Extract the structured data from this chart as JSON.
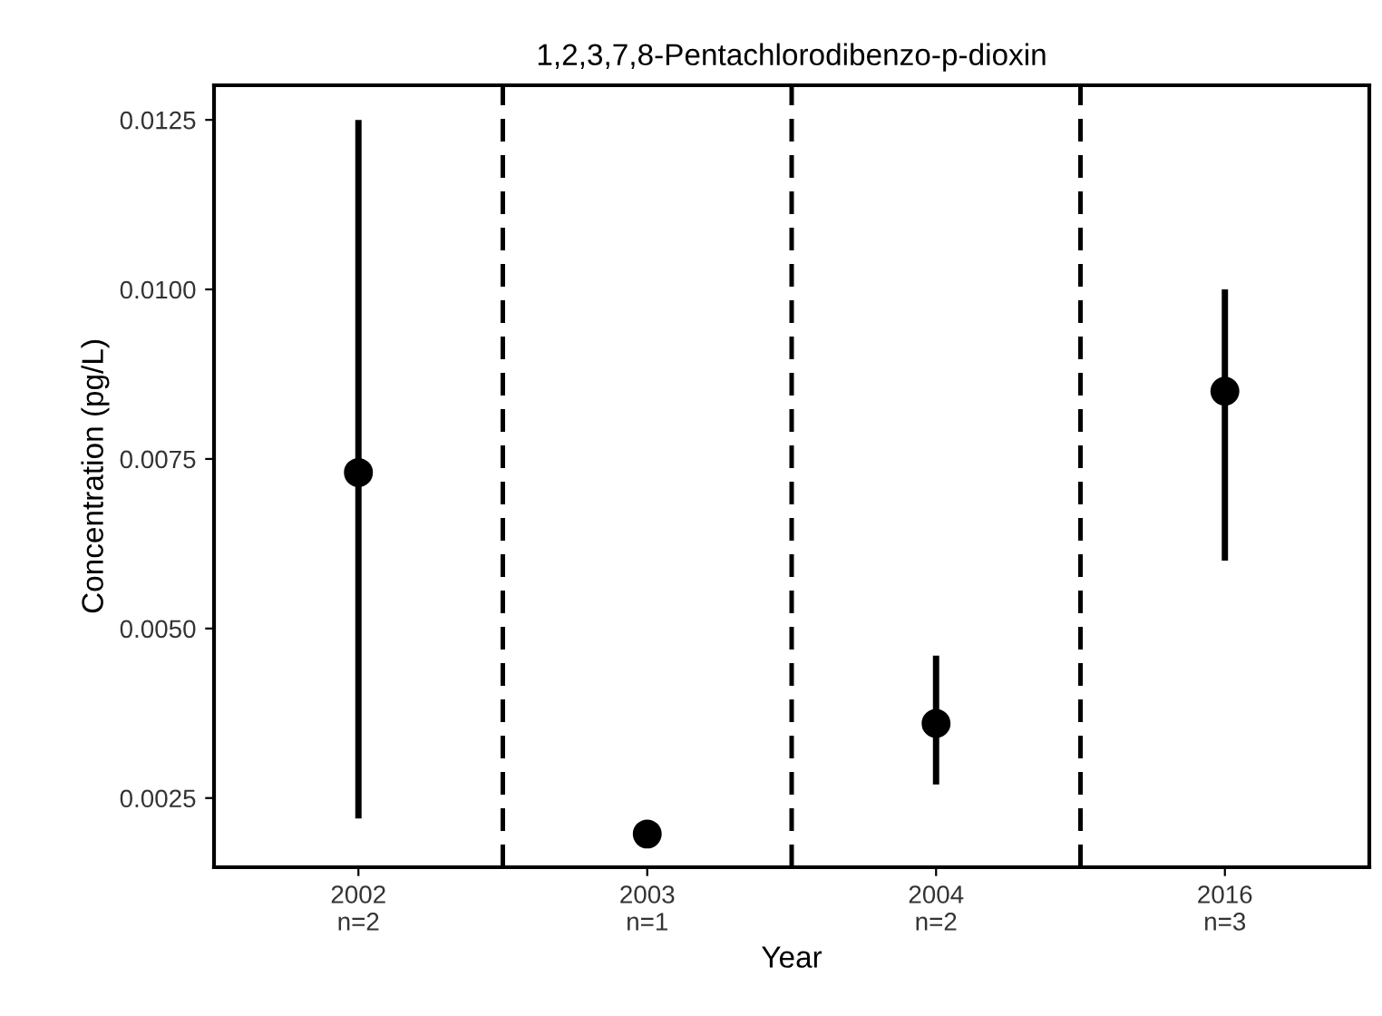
{
  "chart_data": {
    "type": "scatter",
    "title": "1,2,3,7,8-Pentachlorodibenzo-p-dioxin",
    "xlabel": "Year",
    "ylabel": "Concentration (pg/L)",
    "categories": [
      "2002\nn=2",
      "2003\nn=1",
      "2004\nn=2",
      "2016\nn=3"
    ],
    "series": [
      {
        "color": "#000000",
        "values": [
          0.0073,
          0.00197,
          0.0036,
          0.0085
        ],
        "errors": [
          [
            0.0022,
            0.0125
          ],
          null,
          [
            0.0027,
            0.0046
          ],
          [
            0.006,
            0.01
          ]
        ]
      }
    ],
    "ylim": [
      0.00148,
      0.01301
    ],
    "yticks": [
      {
        "value": 0.0025,
        "label": "0.0025"
      },
      {
        "value": 0.005,
        "label": "0.0050"
      },
      {
        "value": 0.0075,
        "label": "0.0075"
      },
      {
        "value": 0.01,
        "label": "0.0100"
      },
      {
        "value": 0.0125,
        "label": "0.0125"
      }
    ],
    "marker": "circle",
    "grid": false,
    "legend": false
  }
}
